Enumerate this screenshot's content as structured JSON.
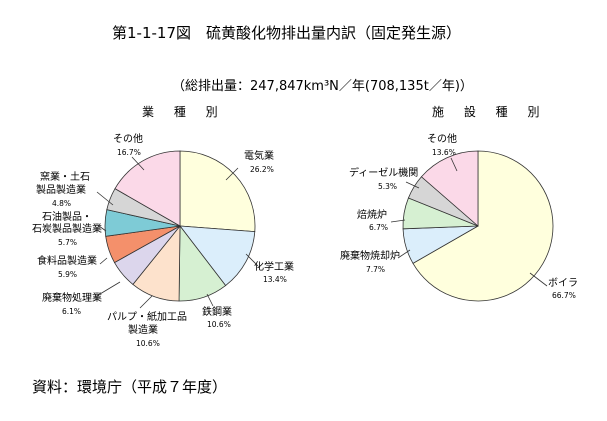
{
  "header": {
    "title": "第1-1-17図　硫黄酸化物排出量内訳（固定発生源）",
    "total": "（総排出量：247,847km³N／年(708,135t／年)）"
  },
  "footer": {
    "source": "資料：環境庁（平成７年度）"
  },
  "chart_data": [
    {
      "type": "pie",
      "title": "業 種 別",
      "slices": [
        {
          "name": "電気業",
          "value": 26.2,
          "label": "26.2%",
          "color": "#ffffdd"
        },
        {
          "name": "化学工業",
          "value": 13.4,
          "label": "13.4%",
          "color": "#dbeefb"
        },
        {
          "name": "鉄鋼業",
          "value": 10.6,
          "label": "10.6%",
          "color": "#d6f0d2"
        },
        {
          "name": "パルプ・紙加工品製造業",
          "value": 10.6,
          "label": "10.6%",
          "color": "#fde2cc"
        },
        {
          "name": "廃棄物処理業",
          "value": 6.1,
          "label": "6.1%",
          "color": "#dcd6ec"
        },
        {
          "name": "食料品製造業",
          "value": 5.9,
          "label": "5.9%",
          "color": "#f4906b"
        },
        {
          "name": "石油製品・石炭製品製造業",
          "value": 5.7,
          "label": "5.7%",
          "color": "#7ecbd6"
        },
        {
          "name": "窯業・土石製品製造業",
          "value": 4.8,
          "label": "4.8%",
          "color": "#d6d6d6"
        },
        {
          "name": "その他",
          "value": 16.7,
          "label": "16.7%",
          "color": "#fbd9e8"
        }
      ]
    },
    {
      "type": "pie",
      "title": "施 設 種 別",
      "slices": [
        {
          "name": "ボイラ",
          "value": 66.7,
          "label": "66.7%",
          "color": "#ffffdd"
        },
        {
          "name": "廃棄物焼却炉",
          "value": 7.7,
          "label": "7.7%",
          "color": "#dbeefb"
        },
        {
          "name": "焙焼炉",
          "value": 6.7,
          "label": "6.7%",
          "color": "#d6f0d2"
        },
        {
          "name": "ディーゼル機関",
          "value": 5.3,
          "label": "5.3%",
          "color": "#d6d6d6"
        },
        {
          "name": "その他",
          "value": 13.6,
          "label": "13.6%",
          "color": "#fbd9e8"
        }
      ]
    }
  ]
}
